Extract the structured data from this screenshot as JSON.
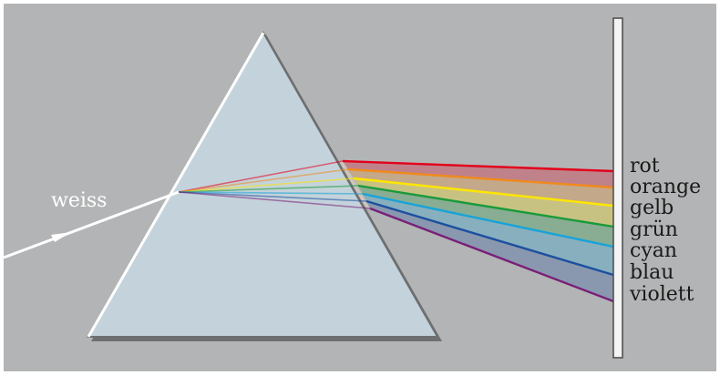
{
  "input_label": "weiss",
  "spectrum": [
    {
      "label": "rot",
      "color": "#e3001b"
    },
    {
      "label": "orange",
      "color": "#f08a1c"
    },
    {
      "label": "gelb",
      "color": "#ffe600"
    },
    {
      "label": "grün",
      "color": "#1a9a3a"
    },
    {
      "label": "cyan",
      "color": "#17a3d8"
    },
    {
      "label": "blau",
      "color": "#1c4fa0"
    },
    {
      "label": "violett",
      "color": "#7a1f78"
    }
  ],
  "colors": {
    "background": "#b3b4b5",
    "prism_fill": "#c4d3db",
    "prism_edge": "#6e6f70",
    "incoming_beam": "#ffffff",
    "screen_fill": "#f4f4f4"
  }
}
